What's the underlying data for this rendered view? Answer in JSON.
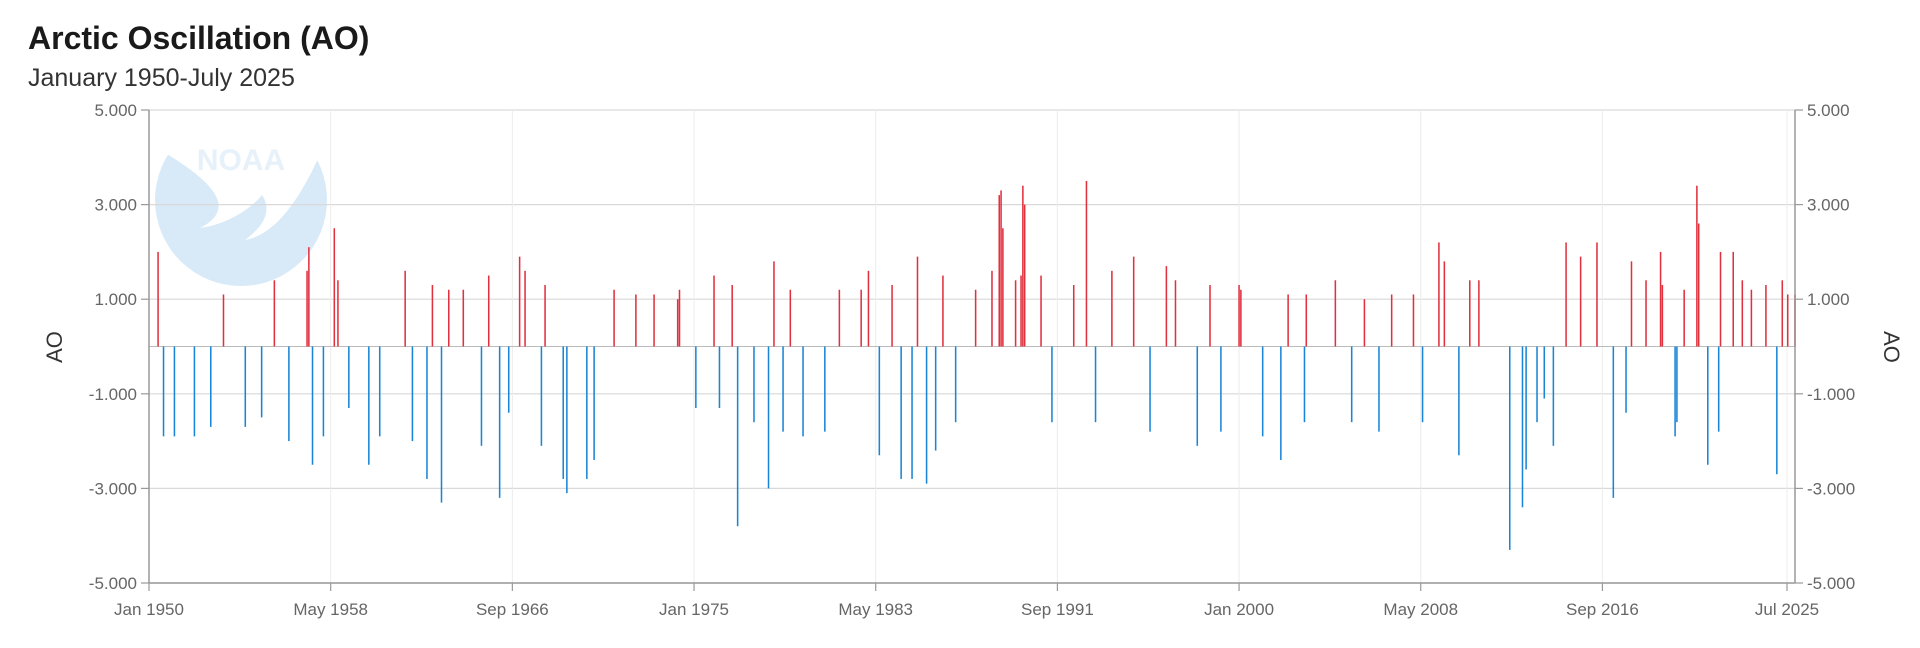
{
  "header": {
    "title": "Arctic Oscillation (AO)",
    "subtitle": "January 1950-July 2025"
  },
  "watermark": {
    "logo_text": "NOAA",
    "icon": "noaa-logo-icon"
  },
  "colors": {
    "positive": "#e0313f",
    "negative": "#1a85d6",
    "grid": "#d9d9d9",
    "axis": "#999999"
  },
  "chart_data": {
    "type": "bar",
    "title": "Arctic Oscillation (AO)",
    "subtitle": "January 1950-July 2025",
    "xlabel": "",
    "ylabel": "AO",
    "ylabel_right": "AO",
    "ylim": [
      -5,
      5
    ],
    "grid": true,
    "y_ticks": [
      "5.000",
      "3.000",
      "1.000",
      "-1.000",
      "-3.000",
      "-5.000"
    ],
    "y_tick_values": [
      5,
      3,
      1,
      -1,
      -3,
      -5
    ],
    "x_ticks": [
      "Jan 1950",
      "May 1958",
      "Sep 1966",
      "Jan 1975",
      "May 1983",
      "Sep 1991",
      "Jan 2000",
      "May 2008",
      "Sep 2016",
      "Jul 2025"
    ],
    "x_start": "1950-01",
    "x_end": "2025-07",
    "x_start_year": 1950,
    "x_end_year": 2025.5,
    "series": [
      {
        "values": [
          {
            "x": "1950-06",
            "y": 2.0
          },
          {
            "x": "1950-09",
            "y": -1.9
          },
          {
            "x": "1951-03",
            "y": -1.9
          },
          {
            "x": "1952-02",
            "y": -1.9
          },
          {
            "x": "1952-11",
            "y": -1.7
          },
          {
            "x": "1953-06",
            "y": 1.1
          },
          {
            "x": "1954-06",
            "y": -1.7
          },
          {
            "x": "1955-03",
            "y": -1.5
          },
          {
            "x": "1955-10",
            "y": 1.4
          },
          {
            "x": "1956-06",
            "y": -2.0
          },
          {
            "x": "1957-04",
            "y": 1.6
          },
          {
            "x": "1957-05",
            "y": 2.1
          },
          {
            "x": "1957-07",
            "y": -2.5
          },
          {
            "x": "1958-01",
            "y": -1.9
          },
          {
            "x": "1958-07",
            "y": 2.5
          },
          {
            "x": "1958-09",
            "y": 1.4
          },
          {
            "x": "1959-03",
            "y": -1.3
          },
          {
            "x": "1960-02",
            "y": -2.5
          },
          {
            "x": "1960-08",
            "y": -1.9
          },
          {
            "x": "1961-10",
            "y": 1.6
          },
          {
            "x": "1962-02",
            "y": -2.0
          },
          {
            "x": "1962-10",
            "y": -2.8
          },
          {
            "x": "1963-01",
            "y": 1.3
          },
          {
            "x": "1963-06",
            "y": -3.3
          },
          {
            "x": "1963-10",
            "y": 1.2
          },
          {
            "x": "1964-06",
            "y": 1.2
          },
          {
            "x": "1965-04",
            "y": -2.1
          },
          {
            "x": "1965-08",
            "y": 1.5
          },
          {
            "x": "1966-02",
            "y": -3.2
          },
          {
            "x": "1966-07",
            "y": -1.4
          },
          {
            "x": "1967-01",
            "y": 1.9
          },
          {
            "x": "1967-04",
            "y": 1.6
          },
          {
            "x": "1968-01",
            "y": -2.1
          },
          {
            "x": "1968-03",
            "y": 1.3
          },
          {
            "x": "1969-01",
            "y": -2.8
          },
          {
            "x": "1969-03",
            "y": -3.1
          },
          {
            "x": "1970-02",
            "y": -2.8
          },
          {
            "x": "1970-06",
            "y": -2.4
          },
          {
            "x": "1971-05",
            "y": 1.2
          },
          {
            "x": "1972-05",
            "y": 1.1
          },
          {
            "x": "1973-03",
            "y": 1.1
          },
          {
            "x": "1974-04",
            "y": 1.0
          },
          {
            "x": "1974-05",
            "y": 1.2
          },
          {
            "x": "1975-02",
            "y": -1.3
          },
          {
            "x": "1975-12",
            "y": 1.5
          },
          {
            "x": "1976-03",
            "y": -1.3
          },
          {
            "x": "1976-10",
            "y": 1.3
          },
          {
            "x": "1977-01",
            "y": -3.8
          },
          {
            "x": "1977-10",
            "y": -1.6
          },
          {
            "x": "1978-06",
            "y": -3.0
          },
          {
            "x": "1978-09",
            "y": 1.8
          },
          {
            "x": "1979-02",
            "y": -1.8
          },
          {
            "x": "1979-06",
            "y": 1.2
          },
          {
            "x": "1980-01",
            "y": -1.9
          },
          {
            "x": "1981-01",
            "y": -1.8
          },
          {
            "x": "1981-09",
            "y": 1.2
          },
          {
            "x": "1982-09",
            "y": 1.2
          },
          {
            "x": "1983-01",
            "y": 1.6
          },
          {
            "x": "1983-07",
            "y": -2.3
          },
          {
            "x": "1984-02",
            "y": 1.3
          },
          {
            "x": "1984-07",
            "y": -2.8
          },
          {
            "x": "1985-01",
            "y": -2.8
          },
          {
            "x": "1985-04",
            "y": 1.9
          },
          {
            "x": "1985-09",
            "y": -2.9
          },
          {
            "x": "1986-02",
            "y": -2.2
          },
          {
            "x": "1986-06",
            "y": 1.5
          },
          {
            "x": "1987-01",
            "y": -1.6
          },
          {
            "x": "1987-12",
            "y": 1.2
          },
          {
            "x": "1988-09",
            "y": 1.6
          },
          {
            "x": "1989-01",
            "y": 3.2
          },
          {
            "x": "1989-02",
            "y": 3.3
          },
          {
            "x": "1989-03",
            "y": 2.5
          },
          {
            "x": "1989-10",
            "y": 1.4
          },
          {
            "x": "1990-01",
            "y": 1.5
          },
          {
            "x": "1990-02",
            "y": 3.4
          },
          {
            "x": "1990-03",
            "y": 3.0
          },
          {
            "x": "1990-12",
            "y": 1.5
          },
          {
            "x": "1991-06",
            "y": -1.6
          },
          {
            "x": "1992-06",
            "y": 1.3
          },
          {
            "x": "1993-01",
            "y": 3.5
          },
          {
            "x": "1993-06",
            "y": -1.6
          },
          {
            "x": "1994-03",
            "y": 1.6
          },
          {
            "x": "1995-03",
            "y": 1.9
          },
          {
            "x": "1995-12",
            "y": -1.8
          },
          {
            "x": "1996-09",
            "y": 1.7
          },
          {
            "x": "1997-02",
            "y": 1.4
          },
          {
            "x": "1998-02",
            "y": -2.1
          },
          {
            "x": "1998-09",
            "y": 1.3
          },
          {
            "x": "1999-03",
            "y": -1.8
          },
          {
            "x": "2000-01",
            "y": 1.3
          },
          {
            "x": "2000-02",
            "y": 1.2
          },
          {
            "x": "2001-02",
            "y": -1.9
          },
          {
            "x": "2001-12",
            "y": -2.4
          },
          {
            "x": "2002-04",
            "y": 1.1
          },
          {
            "x": "2003-01",
            "y": -1.6
          },
          {
            "x": "2003-02",
            "y": 1.1
          },
          {
            "x": "2004-06",
            "y": 1.4
          },
          {
            "x": "2005-03",
            "y": -1.6
          },
          {
            "x": "2005-10",
            "y": 1.0
          },
          {
            "x": "2006-06",
            "y": -1.8
          },
          {
            "x": "2007-01",
            "y": 1.1
          },
          {
            "x": "2008-01",
            "y": 1.1
          },
          {
            "x": "2008-06",
            "y": -1.6
          },
          {
            "x": "2009-03",
            "y": 2.2
          },
          {
            "x": "2009-06",
            "y": 1.8
          },
          {
            "x": "2010-02",
            "y": -2.3
          },
          {
            "x": "2010-08",
            "y": 1.4
          },
          {
            "x": "2011-01",
            "y": 1.4
          },
          {
            "x": "2012-06",
            "y": -4.3
          },
          {
            "x": "2013-01",
            "y": -3.4
          },
          {
            "x": "2013-03",
            "y": -2.6
          },
          {
            "x": "2013-09",
            "y": -1.6
          },
          {
            "x": "2014-01",
            "y": -1.1
          },
          {
            "x": "2014-06",
            "y": -2.1
          },
          {
            "x": "2015-01",
            "y": 2.2
          },
          {
            "x": "2015-09",
            "y": 1.9
          },
          {
            "x": "2016-06",
            "y": 2.2
          },
          {
            "x": "2017-03",
            "y": -3.2
          },
          {
            "x": "2017-10",
            "y": -1.4
          },
          {
            "x": "2018-01",
            "y": 1.8
          },
          {
            "x": "2018-09",
            "y": 1.4
          },
          {
            "x": "2019-05",
            "y": 2.0
          },
          {
            "x": "2019-06",
            "y": 1.3
          },
          {
            "x": "2020-01",
            "y": -1.9
          },
          {
            "x": "2020-02",
            "y": -1.6
          },
          {
            "x": "2020-06",
            "y": 1.2
          },
          {
            "x": "2021-01",
            "y": 3.4
          },
          {
            "x": "2021-02",
            "y": 2.6
          },
          {
            "x": "2021-07",
            "y": -2.5
          },
          {
            "x": "2022-01",
            "y": -1.8
          },
          {
            "x": "2022-02",
            "y": 2.0
          },
          {
            "x": "2022-09",
            "y": 2.0
          },
          {
            "x": "2023-02",
            "y": 1.4
          },
          {
            "x": "2023-07",
            "y": 1.2
          },
          {
            "x": "2024-03",
            "y": 1.3
          },
          {
            "x": "2024-09",
            "y": -2.7
          },
          {
            "x": "2024-12",
            "y": 1.4
          },
          {
            "x": "2025-03",
            "y": 1.1
          },
          {
            "x": "2025-07",
            "y": 1.1
          }
        ]
      }
    ]
  }
}
